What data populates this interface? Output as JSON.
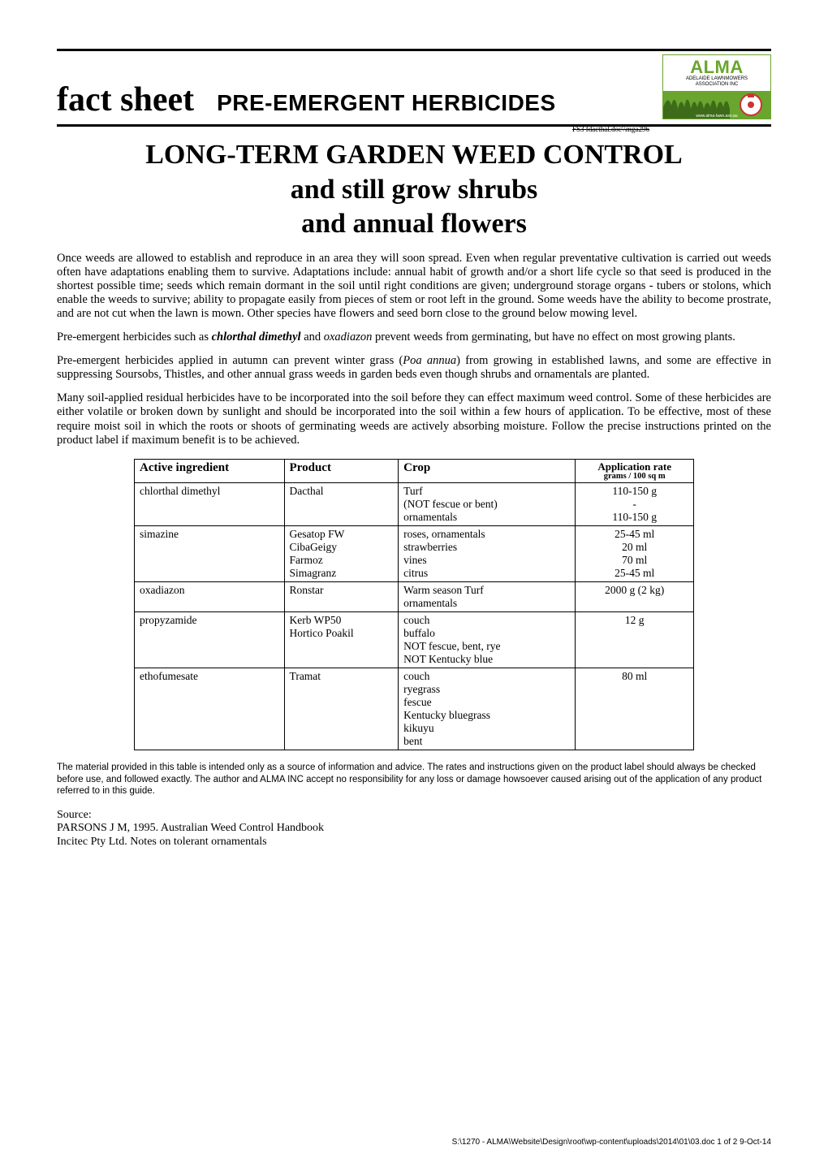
{
  "header": {
    "fact_sheet": "fact sheet",
    "subtitle": "PRE-EMERGENT HERBICIDES",
    "tinycode": "FS3  fdacthal.doc\\\\mga296"
  },
  "logo": {
    "alma": "ALMA",
    "line1": "ADELAIDE LAWNMOWERS",
    "line2": "ASSOCIATION INC",
    "url": "www.alma-lawn.asn.au",
    "bg_color": "#6aa52e"
  },
  "title": {
    "line1": "LONG-TERM GARDEN WEED CONTROL",
    "line2": "and still grow shrubs",
    "line3": "and annual flowers"
  },
  "paragraphs": {
    "p1": "Once weeds are allowed to establish and reproduce in an area they will soon spread. Even when regular preventative cultivation is carried out weeds often have adaptations enabling them to survive. Adaptations include: annual habit of growth and/or a short life cycle so that seed is produced in the shortest possible time; seeds which remain dormant in the soil until right conditions are given; underground storage organs - tubers or stolons, which enable the weeds to survive; ability to propagate easily from pieces of stem or root left in the ground. Some weeds have the ability to become prostrate, and are not cut when the lawn is mown. Other species have flowers and seed born close to the ground below mowing level.",
    "p2_pre": "Pre-emergent herbicides such as ",
    "p2_em1": "chlorthal dimethyl",
    "p2_mid": " and ",
    "p2_em2": "oxadiazon",
    "p2_post": " prevent weeds from germinating, but have no effect on most growing plants.",
    "p3_pre": "Pre-emergent herbicides applied in autumn can prevent winter grass (",
    "p3_em": "Poa annua",
    "p3_post": ") from growing in established lawns, and some are effective in suppressing Soursobs, Thistles, and other annual grass weeds in garden beds even though shrubs and ornamentals are planted.",
    "p4": "Many soil-applied residual herbicides have to be incorporated into the soil before they can effect maximum weed control. Some of these herbicides are either volatile or broken down by sunlight and should be incorporated into the soil within a few hours of application. To be effective, most of these require moist soil in which the roots or shoots of germinating weeds are actively absorbing moisture. Follow the precise instructions printed on the product label if maximum benefit is to be achieved."
  },
  "table": {
    "headers": {
      "ai": "Active ingredient",
      "product": "Product",
      "crop": "Crop",
      "rate": "Application rate",
      "rate_sub": "grams / 100 sq m"
    },
    "rows": [
      {
        "ai": "chlorthal dimethyl",
        "product": "Dacthal",
        "crop": "Turf\n(NOT fescue or bent)\nornamentals",
        "rate": "110-150 g\n-\n110-150 g"
      },
      {
        "ai": "simazine",
        "product": "Gesatop FW\nCibaGeigy\nFarmoz\nSimagranz",
        "crop": "roses, ornamentals\nstrawberries\nvines\ncitrus",
        "rate": "25-45 ml\n20 ml\n70 ml\n25-45 ml"
      },
      {
        "ai": "oxadiazon",
        "product": "Ronstar",
        "crop": "Warm season Turf\nornamentals",
        "rate": "2000 g (2 kg)"
      },
      {
        "ai": "propyzamide",
        "product": "Kerb WP50\nHortico Poakil",
        "crop": "couch\nbuffalo\nNOT fescue, bent, rye\nNOT Kentucky blue",
        "rate": "12 g"
      },
      {
        "ai": "ethofumesate",
        "product": "Tramat",
        "crop": "couch\nryegrass\nfescue\nKentucky bluegrass\nkikuyu\nbent",
        "rate": "80 ml"
      }
    ]
  },
  "disclaimer": "The material provided in this table is intended only as a source of information and advice. The rates and instructions given on the product label should always be checked before use, and followed exactly. The author and ALMA INC accept no responsibility for any loss or damage howsoever caused arising out of the application of any product referred to in this guide.",
  "source": {
    "heading": "Source:",
    "line1": "PARSONS J M, 1995.  Australian Weed Control Handbook",
    "line2": "Incitec Pty Ltd. Notes on tolerant ornamentals"
  },
  "footer": "S:\\1270 - ALMA\\Website\\Design\\root\\wp-content\\uploads\\2014\\01\\03.doc     1 of 2     9-Oct-14"
}
